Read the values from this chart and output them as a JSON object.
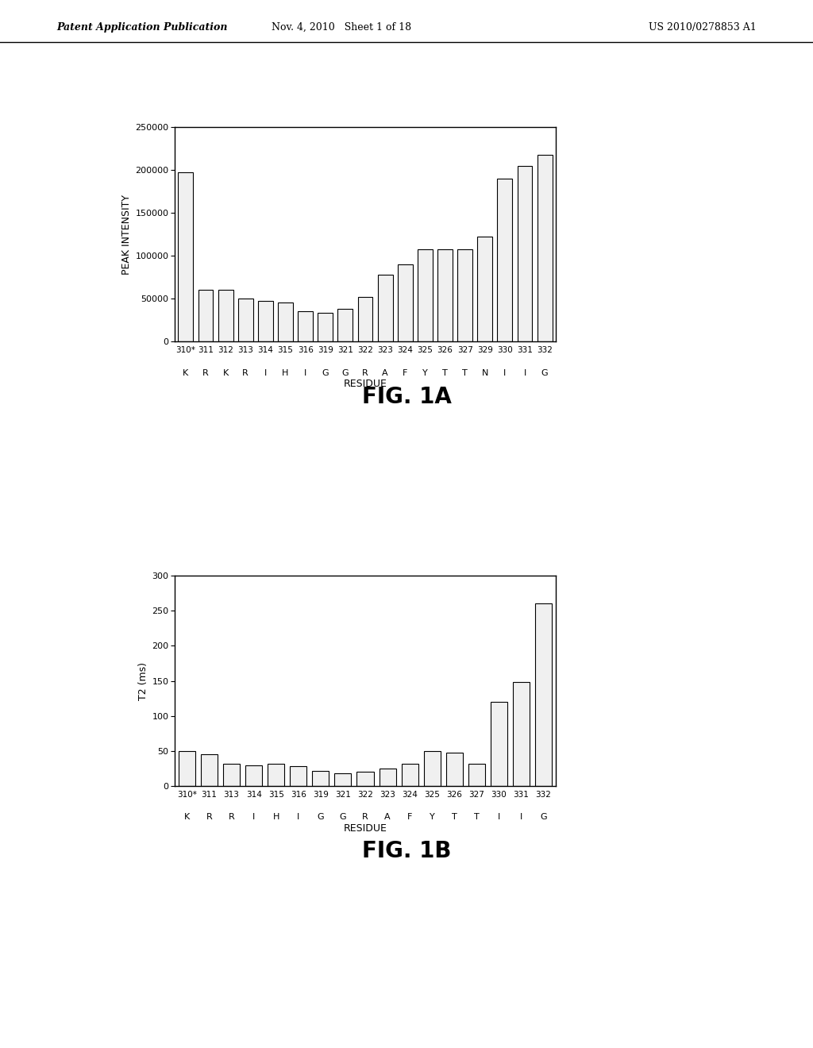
{
  "fig1a": {
    "labels_top": [
      "310*",
      "311",
      "312",
      "313",
      "314",
      "315",
      "316",
      "319",
      "321",
      "322",
      "323",
      "324",
      "325",
      "326",
      "327",
      "329",
      "330",
      "331",
      "332"
    ],
    "labels_bottom": [
      "K",
      "R",
      "K",
      "R",
      "I",
      "H",
      "I",
      "G",
      "G",
      "R",
      "A",
      "F",
      "Y",
      "T",
      "T",
      "N",
      "I",
      "I",
      "G"
    ],
    "values": [
      197000,
      60000,
      60000,
      50000,
      47000,
      45000,
      35000,
      33000,
      38000,
      52000,
      78000,
      90000,
      107000,
      107000,
      107000,
      122000,
      190000,
      205000,
      218000
    ],
    "ylabel": "PEAK INTENSITY",
    "xlabel": "RESIDUE",
    "ylim": [
      0,
      250000
    ],
    "yticks": [
      0,
      50000,
      100000,
      150000,
      200000,
      250000
    ],
    "fig_label": "FIG. 1A"
  },
  "fig1b": {
    "labels_top": [
      "310*",
      "311",
      "313",
      "314",
      "315",
      "316",
      "319",
      "321",
      "322",
      "323",
      "324",
      "325",
      "326",
      "327",
      "330",
      "331",
      "332"
    ],
    "labels_bottom": [
      "K",
      "R",
      "R",
      "I",
      "H",
      "I",
      "G",
      "G",
      "R",
      "A",
      "F",
      "Y",
      "T",
      "T",
      "I",
      "I",
      "G"
    ],
    "values": [
      50,
      45,
      32,
      30,
      32,
      28,
      22,
      18,
      20,
      25,
      32,
      50,
      48,
      32,
      120,
      148,
      260
    ],
    "ylabel": "T2 (ms)",
    "xlabel": "RESIDUE",
    "ylim": [
      0,
      300
    ],
    "yticks": [
      0,
      50,
      100,
      150,
      200,
      250,
      300
    ],
    "fig_label": "FIG. 1B"
  },
  "header_left": "Patent Application Publication",
  "header_mid": "Nov. 4, 2010   Sheet 1 of 18",
  "header_right": "US 2010/0278853 A1",
  "background_color": "#ffffff",
  "bar_facecolor": "#f0f0f0",
  "bar_edgecolor": "#000000"
}
